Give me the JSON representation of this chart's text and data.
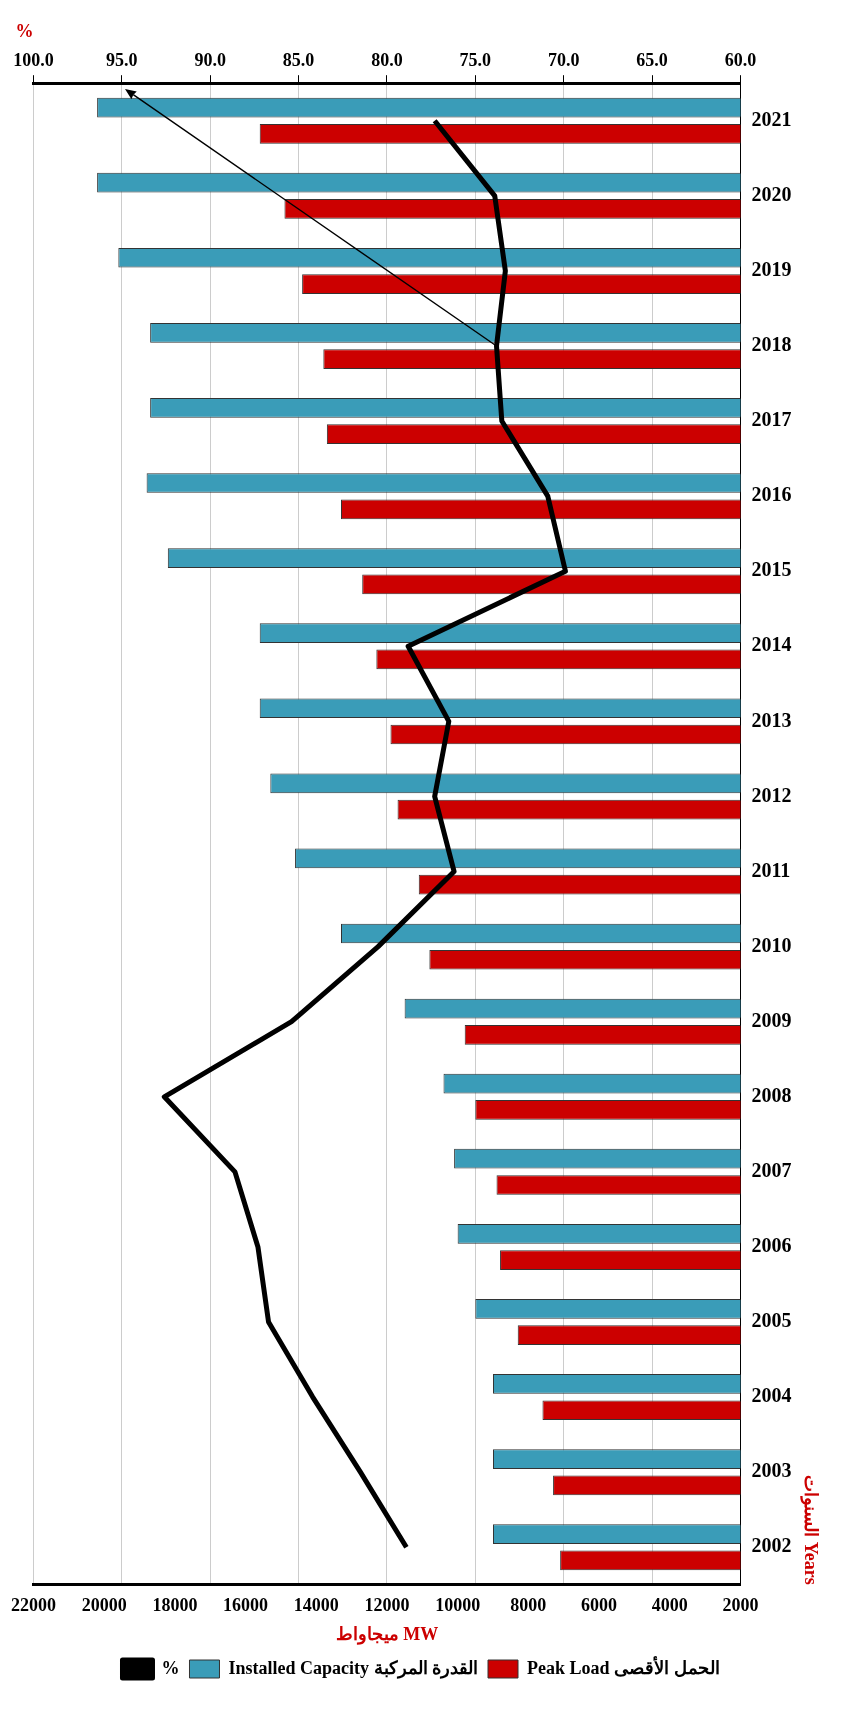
{
  "chart_data": {
    "type": "bar",
    "orientation": "horizontal",
    "xlabel": "ميجاواط MW",
    "x2label": "%",
    "ylabel": "السنوات Years",
    "categories": [
      "2021",
      "2020",
      "2019",
      "2018",
      "2017",
      "2016",
      "2015",
      "2014",
      "2013",
      "2012",
      "2011",
      "2010",
      "2009",
      "2008",
      "2007",
      "2006",
      "2005",
      "2004",
      "2003",
      "2002"
    ],
    "series": [
      {
        "name": "Installed Capacity القدرة المركبة",
        "color": "#3a9cb8",
        "values": [
          20200,
          20200,
          19600,
          18700,
          18700,
          18800,
          18200,
          15600,
          15600,
          15300,
          14600,
          13300,
          11500,
          10400,
          10100,
          10000,
          9500,
          9000,
          9000,
          9000
        ]
      },
      {
        "name": "Peak Load الحمل الأقصى",
        "color": "#cc0000",
        "values": [
          15600,
          14900,
          14400,
          13800,
          13700,
          13300,
          12700,
          12300,
          11900,
          11700,
          11100,
          10800,
          9800,
          9500,
          8900,
          8800,
          8300,
          7600,
          7300,
          7100
        ]
      },
      {
        "name": "%",
        "type": "line",
        "axis": "x2",
        "color": "#000000",
        "values": [
          77.3,
          73.9,
          73.3,
          73.8,
          73.5,
          70.9,
          69.9,
          78.8,
          76.5,
          77.3,
          76.2,
          80.5,
          85.4,
          92.6,
          88.6,
          87.3,
          86.7,
          84.2,
          81.5,
          78.9
        ]
      }
    ],
    "xlim": [
      22000,
      2000
    ],
    "xticks": [
      22000,
      20000,
      18000,
      16000,
      14000,
      12000,
      10000,
      8000,
      6000,
      4000,
      2000
    ],
    "x2lim": [
      100,
      60
    ],
    "x2ticks": [
      {
        "value": 100,
        "label": "100.0"
      },
      {
        "value": 95,
        "label": "95.0"
      },
      {
        "value": 90,
        "label": "90.0"
      },
      {
        "value": 85,
        "label": "85.0"
      },
      {
        "value": 80,
        "label": "80.0"
      },
      {
        "value": 75,
        "label": "75.0"
      },
      {
        "value": 70,
        "label": "70.0"
      },
      {
        "value": 65,
        "label": "65.0"
      },
      {
        "value": 60,
        "label": "60.0"
      }
    ],
    "grid": "x",
    "legend": "bottom",
    "marker": "none",
    "line_style": "solid"
  }
}
